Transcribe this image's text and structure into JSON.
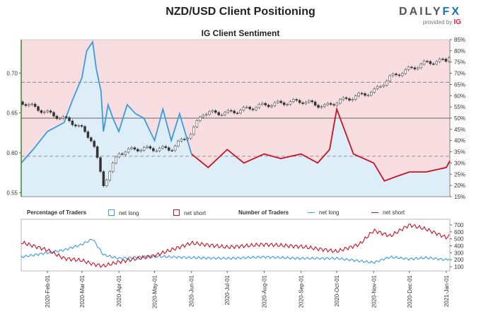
{
  "header": {
    "title": "NZD/USD Client Positioning",
    "subtitle": "IG Client Sentiment",
    "logo_daily": "DAILY",
    "logo_fx": "FX",
    "logo_provided": "provided by",
    "logo_ig": "IG"
  },
  "legend": {
    "pct_title": "Percentage of Traders",
    "num_title": "Number of Traders",
    "net_long": "net long",
    "net_short": "net short"
  },
  "colors": {
    "net_long": "#3a9be0",
    "net_short": "#cc1122",
    "short_fill": "#f8dde1",
    "long_fill": "#ddeef9",
    "price_axis": "#3a8a2a"
  },
  "chart_data": [
    {
      "type": "line",
      "title": "NZD/USD Client Positioning",
      "subtitle": "IG Client Sentiment",
      "left_axis": {
        "ticks": [
          "0.55",
          "0.60",
          "0.65",
          "0.70"
        ],
        "ylim": [
          0.545,
          0.742
        ]
      },
      "right_axis": {
        "ticks": [
          "15%",
          "20%",
          "25%",
          "30%",
          "35%",
          "40%",
          "45%",
          "50%",
          "55%",
          "60%",
          "65%",
          "70%",
          "75%",
          "80%",
          "85%"
        ],
        "ylim": [
          15,
          85
        ]
      },
      "reference_lines_pct": [
        33,
        50,
        66
      ],
      "price_series": {
        "name": "NZD/USD",
        "kind": "candlestick",
        "x": [
          "2020-01-10",
          "2020-02-01",
          "2020-02-20",
          "2020-03-01",
          "2020-03-10",
          "2020-03-19",
          "2020-04-01",
          "2020-04-15",
          "2020-05-01",
          "2020-05-15",
          "2020-06-01",
          "2020-06-10",
          "2020-07-01",
          "2020-08-01",
          "2020-09-01",
          "2020-09-21",
          "2020-10-01",
          "2020-11-01",
          "2020-11-15",
          "2020-12-01",
          "2020-12-15",
          "2021-01-01",
          "2021-01-04"
        ],
        "values": [
          0.664,
          0.65,
          0.64,
          0.63,
          0.615,
          0.56,
          0.6,
          0.605,
          0.605,
          0.605,
          0.625,
          0.65,
          0.65,
          0.66,
          0.665,
          0.658,
          0.664,
          0.677,
          0.695,
          0.705,
          0.713,
          0.716,
          0.724
        ]
      },
      "net_long_pct": {
        "name": "net long",
        "x": [
          "2020-01-10",
          "2020-01-20",
          "2020-02-01",
          "2020-02-15",
          "2020-02-22",
          "2020-03-01",
          "2020-03-05",
          "2020-03-10",
          "2020-03-13",
          "2020-03-17",
          "2020-03-19",
          "2020-03-23",
          "2020-03-27",
          "2020-04-01",
          "2020-04-08",
          "2020-04-15",
          "2020-04-22",
          "2020-05-01",
          "2020-05-08",
          "2020-05-15",
          "2020-05-22",
          "2020-06-01"
        ],
        "values": [
          30,
          36,
          44,
          48,
          58,
          68,
          80,
          84,
          72,
          62,
          44,
          56,
          50,
          44,
          56,
          52,
          50,
          40,
          54,
          40,
          52,
          34
        ]
      },
      "net_short_pct": {
        "name": "net short",
        "x": [
          "2020-06-01",
          "2020-06-15",
          "2020-07-01",
          "2020-07-15",
          "2020-08-01",
          "2020-08-15",
          "2020-09-01",
          "2020-09-15",
          "2020-09-25",
          "2020-10-01",
          "2020-10-15",
          "2020-11-01",
          "2020-11-10",
          "2020-11-20",
          "2020-12-01",
          "2020-12-15",
          "2021-01-01",
          "2021-01-04"
        ],
        "values": [
          34,
          28,
          36,
          30,
          34,
          32,
          34,
          30,
          36,
          54,
          34,
          30,
          22,
          24,
          26,
          26,
          28,
          31
        ]
      }
    },
    {
      "type": "line",
      "title": "Number of Traders",
      "right_axis": {
        "ticks": [
          "100",
          "200",
          "300",
          "400",
          "500",
          "600",
          "700"
        ],
        "ylim": [
          40,
          780
        ]
      },
      "x_tick_labels": [
        "2020-Feb-01",
        "2020-Mar-01",
        "2020-Apr-01",
        "2020-May-01",
        "2020-Jun-01",
        "2020-Jul-01",
        "2020-Aug-01",
        "2020-Sep-01",
        "2020-Oct-01",
        "2020-Nov-01",
        "2020-Dec-01",
        "2021-Jan-01"
      ],
      "series": [
        {
          "name": "net long",
          "x": [
            "2020-01-10",
            "2020-02-01",
            "2020-02-15",
            "2020-03-01",
            "2020-03-10",
            "2020-03-19",
            "2020-04-01",
            "2020-05-01",
            "2020-06-01",
            "2020-07-01",
            "2020-08-01",
            "2020-09-01",
            "2020-10-01",
            "2020-11-01",
            "2020-11-15",
            "2020-12-01",
            "2020-12-15",
            "2021-01-01",
            "2021-01-04"
          ],
          "values": [
            240,
            300,
            340,
            420,
            500,
            270,
            220,
            250,
            230,
            220,
            240,
            220,
            220,
            160,
            240,
            210,
            230,
            200,
            220
          ]
        },
        {
          "name": "net short",
          "x": [
            "2020-01-10",
            "2020-02-01",
            "2020-02-15",
            "2020-03-01",
            "2020-03-10",
            "2020-03-19",
            "2020-04-01",
            "2020-05-01",
            "2020-06-01",
            "2020-07-01",
            "2020-08-01",
            "2020-09-01",
            "2020-10-01",
            "2020-10-20",
            "2020-11-01",
            "2020-11-15",
            "2020-12-01",
            "2020-12-15",
            "2021-01-01",
            "2021-01-04"
          ],
          "values": [
            450,
            340,
            220,
            190,
            140,
            110,
            170,
            260,
            440,
            380,
            420,
            390,
            320,
            420,
            620,
            540,
            700,
            640,
            520,
            540
          ]
        }
      ]
    }
  ]
}
